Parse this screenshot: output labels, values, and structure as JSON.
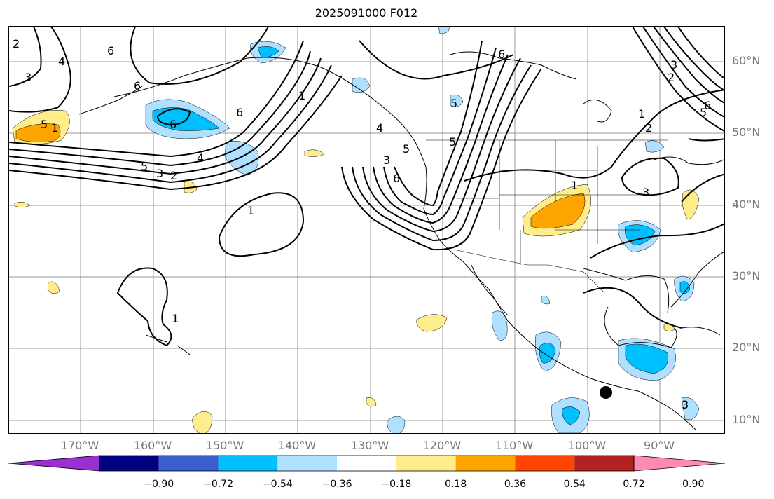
{
  "title": "2025091000 F012",
  "lat_labels": [
    "60°N",
    "50°N",
    "40°N",
    "30°N",
    "20°N",
    "10°N"
  ],
  "lon_labels": [
    "170°W",
    "160°W",
    "150°W",
    "140°W",
    "130°W",
    "120°W",
    "110°W",
    "100°W",
    "90°W"
  ],
  "colorbar": {
    "ticks": [
      "−0.90",
      "−0.72",
      "−0.54",
      "−0.36",
      "−0.18",
      "0.18",
      "0.36",
      "0.54",
      "0.72",
      "0.90"
    ],
    "colors": [
      "#9b30d0",
      "#000080",
      "#3a5fcd",
      "#00bfff",
      "#b0e0ff",
      "#ffffff",
      "#ffec8b",
      "#ffa500",
      "#ff4500",
      "#b22222",
      "#ff8ab4"
    ]
  },
  "contour_labels": [
    "1",
    "2",
    "3",
    "4",
    "5",
    "6",
    "5",
    "6",
    "6",
    "5",
    "4",
    "3",
    "2",
    "1",
    "1",
    "1",
    "3",
    "4",
    "5",
    "6",
    "6",
    "5",
    "1",
    "2",
    "3",
    "1",
    "2",
    "3",
    "5",
    "6",
    "6",
    "3"
  ],
  "colors": {
    "warm_light": "#ffec8b",
    "warm_mid": "#ffa500",
    "cool_light": "#b0e0ff",
    "cool_mid": "#00bfff"
  }
}
